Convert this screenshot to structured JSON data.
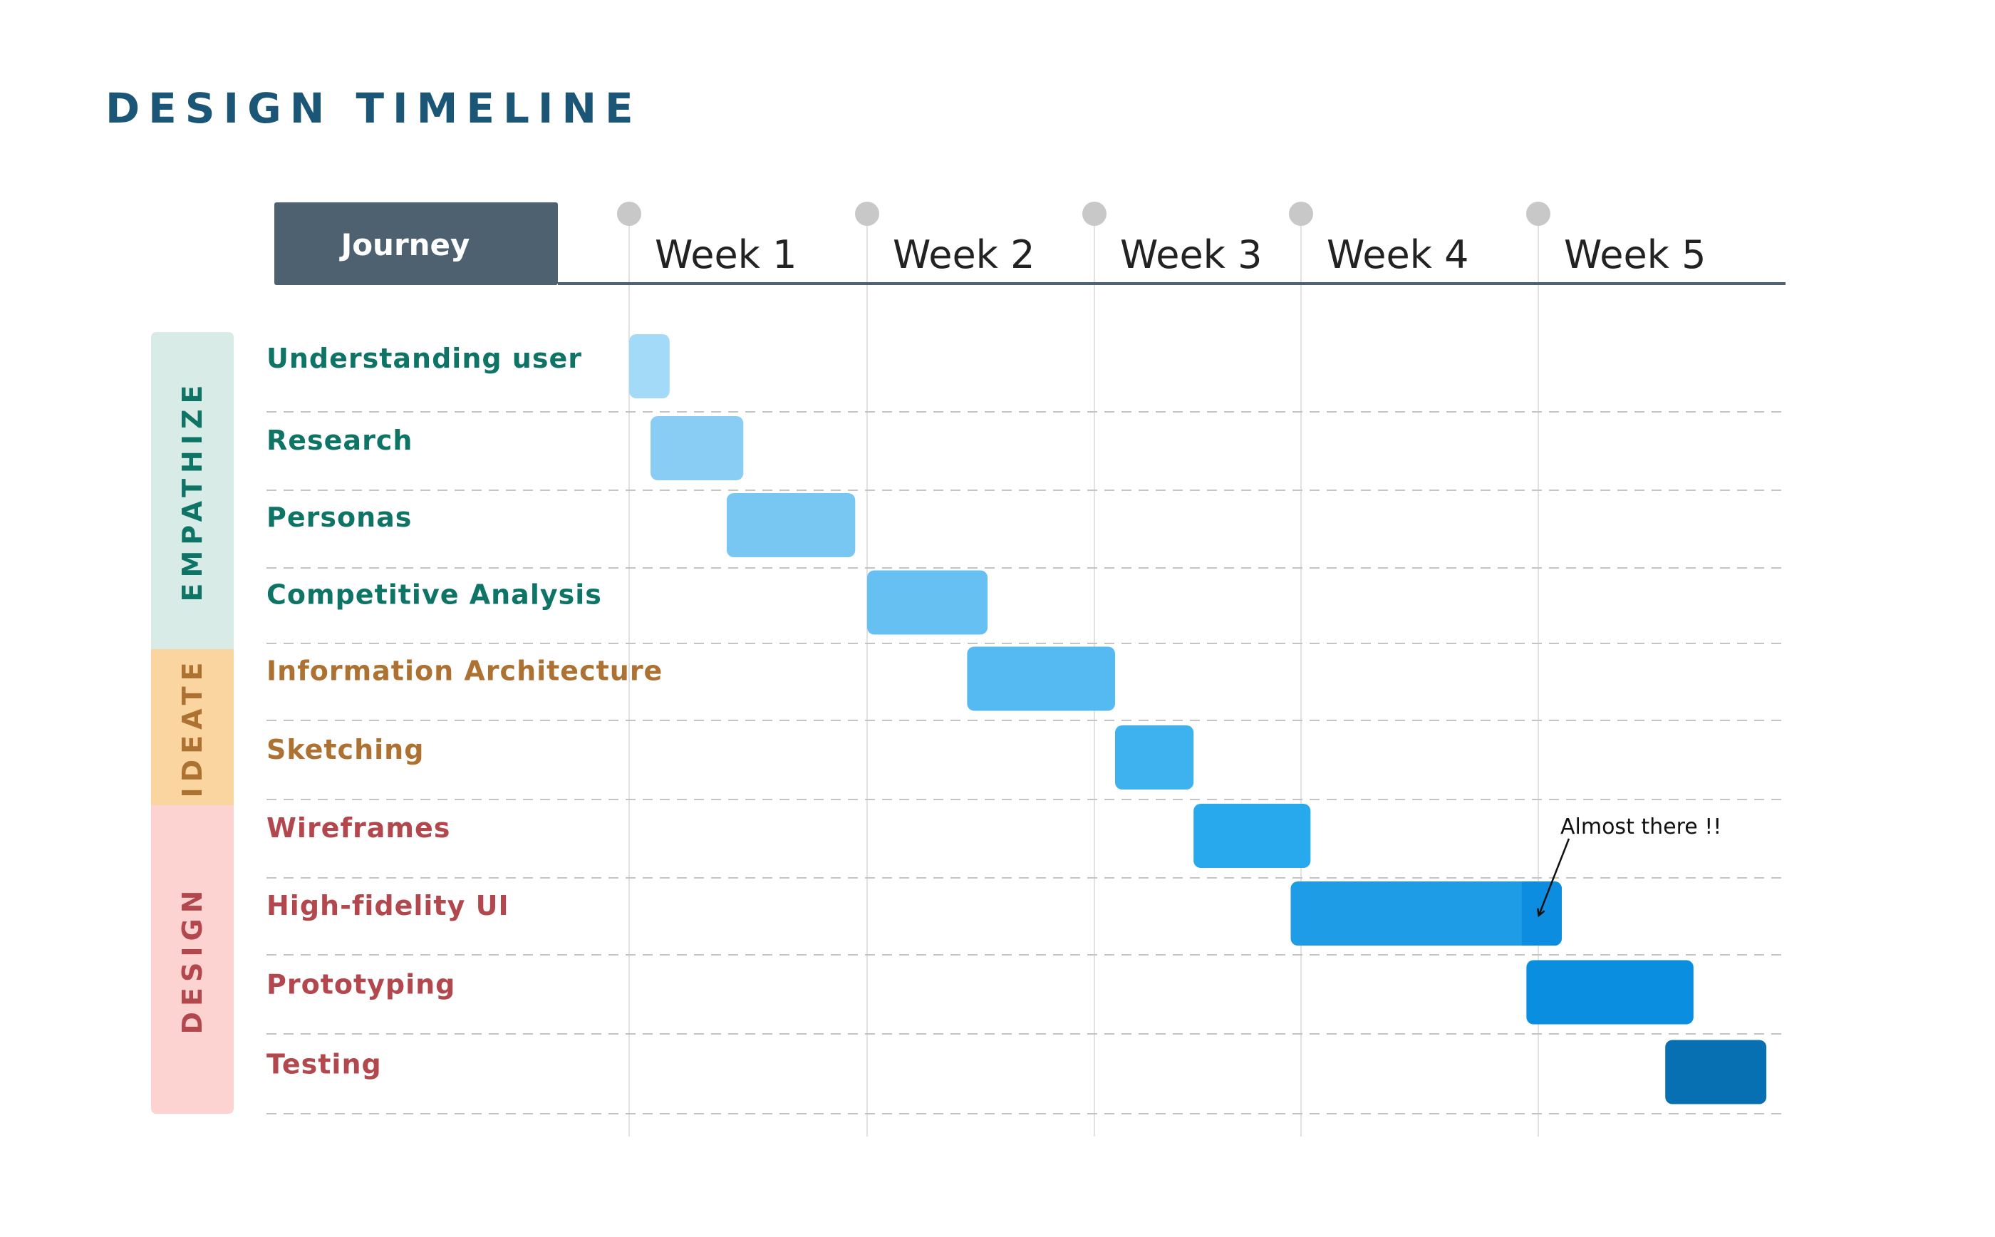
{
  "title": "DESIGN TIMELINE",
  "colors": {
    "title": "#1b5676",
    "header_box": "#4d6170",
    "header_text": "#ffffff",
    "axis_line": "#4d6170",
    "week_text": "#222222",
    "week_dot": "#c8c8c8",
    "grid_vertical": "#e2e2e2",
    "grid_dashed": "#c4c4c4",
    "annotation": "#111111"
  },
  "header": {
    "journey_label": "Journey",
    "weeks": [
      "Week 1",
      "Week 2",
      "Week 3",
      "Week 4",
      "Week 5"
    ]
  },
  "phases": [
    {
      "name": "EMPATHIZE",
      "bg": "#d8ebe7",
      "color": "#0e7466",
      "tasks": 4
    },
    {
      "name": "IDEATE",
      "bg": "#fbd5a0",
      "color": "#ad7131",
      "tasks": 2
    },
    {
      "name": "DESIGN",
      "bg": "#fdd3d1",
      "color": "#b2474d",
      "tasks": 4
    }
  ],
  "tasks": [
    {
      "label": "Understanding user",
      "phase": "EMPATHIZE",
      "start": 0.0,
      "end": 0.17,
      "color": "#a3daf8"
    },
    {
      "label": "Research",
      "phase": "EMPATHIZE",
      "start": 0.09,
      "end": 0.48,
      "color": "#89cdf4"
    },
    {
      "label": "Personas",
      "phase": "EMPATHIZE",
      "start": 0.41,
      "end": 0.95,
      "color": "#78c7f3"
    },
    {
      "label": "Competitive Analysis",
      "phase": "EMPATHIZE",
      "start": 1.0,
      "end": 1.53,
      "color": "#67c0f2"
    },
    {
      "label": "Information Architecture",
      "phase": "IDEATE",
      "start": 1.44,
      "end": 2.1,
      "color": "#55baf1"
    },
    {
      "label": "Sketching",
      "phase": "IDEATE",
      "start": 2.1,
      "end": 2.48,
      "color": "#3eb1ef"
    },
    {
      "label": "Wireframes",
      "phase": "DESIGN",
      "start": 2.48,
      "end": 3.04,
      "color": "#28a8ed"
    },
    {
      "label": "High-fidelity UI",
      "phase": "DESIGN",
      "start": 2.95,
      "end": 4.1,
      "color": "#1e9ce6",
      "overlap_from": 3.93,
      "overlap_color": "#0d8de0"
    },
    {
      "label": "Prototyping",
      "phase": "DESIGN",
      "start": 3.95,
      "end": 4.66,
      "color": "#0a8fe0"
    },
    {
      "label": "Testing",
      "phase": "DESIGN",
      "start": 4.54,
      "end": 4.97,
      "color": "#0670b3"
    }
  ],
  "annotation": {
    "text": "Almost there !!",
    "task": "High-fidelity UI"
  }
}
